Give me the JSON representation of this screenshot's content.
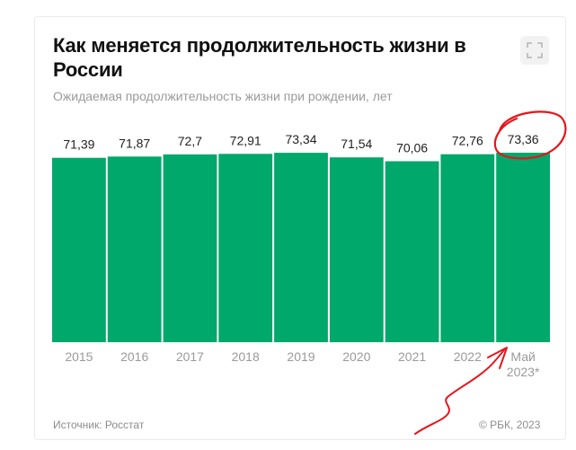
{
  "card": {
    "title": "Как меняется продолжительность жизни в России",
    "subtitle": "Ожидаемая продолжительность жизни при рождении, лет",
    "expand_icon": "expand-icon",
    "source": "Источник: Росстат",
    "copyright": "© РБК, 2023"
  },
  "colors": {
    "bar": "#00a86b",
    "annotation": "#e8141c",
    "value_label": "#222222",
    "tick_label": "#9a9a9a"
  },
  "chart_data": {
    "type": "bar",
    "categories": [
      "2015",
      "2016",
      "2017",
      "2018",
      "2019",
      "2020",
      "2021",
      "2022",
      "Май 2023*"
    ],
    "values": [
      71.39,
      71.87,
      72.7,
      72.91,
      73.34,
      71.54,
      70.06,
      72.76,
      73.36
    ],
    "value_labels": [
      "71,39",
      "71,87",
      "72,7",
      "72,91",
      "73,34",
      "71,54",
      "70,06",
      "72,76",
      "73,36"
    ],
    "title": "Как меняется продолжительность жизни в России",
    "subtitle": "Ожидаемая продолжительность жизни при рождении, лет",
    "xlabel": "",
    "ylabel": "",
    "ylim": [
      0,
      73.36
    ],
    "grid": false,
    "legend": "none",
    "highlighted_category": "Май 2023*"
  }
}
